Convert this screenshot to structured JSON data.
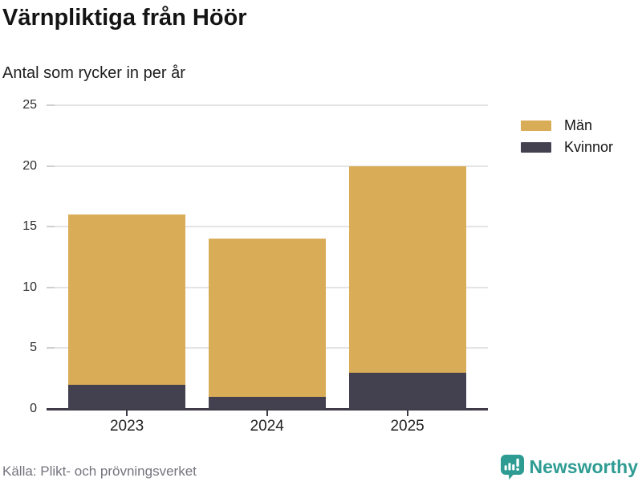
{
  "title": "Värnpliktiga från Höör",
  "subtitle": "Antal som rycker in per år",
  "legend": {
    "items": [
      {
        "label": "Män",
        "color": "#d9ac57"
      },
      {
        "label": "Kvinnor",
        "color": "#434050"
      }
    ]
  },
  "chart_data": {
    "type": "bar",
    "stacked": true,
    "categories": [
      "2023",
      "2024",
      "2025"
    ],
    "series": [
      {
        "name": "Män",
        "color": "#d9ac57",
        "values": [
          14,
          13,
          17
        ]
      },
      {
        "name": "Kvinnor",
        "color": "#434050",
        "values": [
          2,
          1,
          3
        ]
      }
    ],
    "stack_totals": [
      16,
      14,
      20
    ],
    "title": "Värnpliktiga från Höör",
    "subtitle": "Antal som rycker in per år",
    "xlabel": "",
    "ylabel": "",
    "ylim": [
      0,
      25
    ],
    "yticks": [
      0,
      5,
      10,
      15,
      20,
      25
    ],
    "grid": true,
    "legend_position": "top-right"
  },
  "footer": {
    "source": "Källa: Plikt- och prövningsverket",
    "brand": "Newsworthy"
  },
  "colors": {
    "men": "#d9ac57",
    "women": "#434050",
    "teal_brand": "#2e9c93",
    "gridline": "#e4e4e4",
    "axis": "#3e3b47",
    "source_text": "#73737d"
  }
}
